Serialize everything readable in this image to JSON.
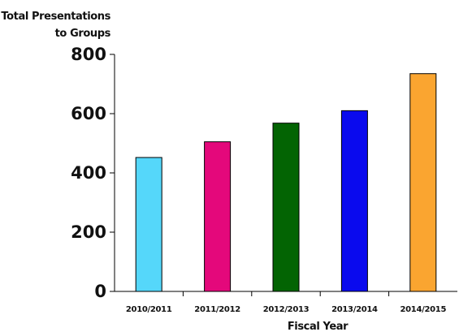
{
  "chart_data": {
    "type": "bar",
    "ylabel_lines": [
      "Total Presentations",
      "to Groups"
    ],
    "xlabel": "Fiscal Year",
    "categories": [
      "2010/2011",
      "2011/2012",
      "2012/2013",
      "2013/2014",
      "2014/2015"
    ],
    "values": [
      452,
      505,
      568,
      610,
      735
    ],
    "colors": [
      "#55D7FA",
      "#E4087B",
      "#036403",
      "#0A0AEE",
      "#FAA530"
    ],
    "yticks": [
      0,
      200,
      400,
      600,
      800
    ],
    "ylim": [
      0,
      800
    ],
    "grid": false,
    "legend": "none"
  }
}
